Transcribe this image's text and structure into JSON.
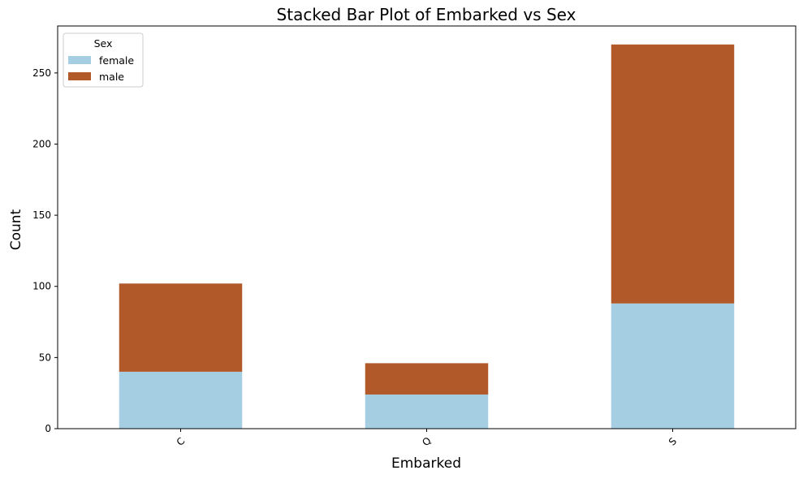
{
  "chart_data": {
    "type": "bar",
    "stacked": true,
    "title": "Stacked Bar Plot of Embarked vs Sex",
    "xlabel": "Embarked",
    "ylabel": "Count",
    "categories": [
      "C",
      "Q",
      "S"
    ],
    "series": [
      {
        "name": "female",
        "values": [
          40,
          24,
          88
        ],
        "color": "#a6cee3"
      },
      {
        "name": "male",
        "values": [
          62,
          22,
          182
        ],
        "color": "#b15928"
      }
    ],
    "ylim": [
      0,
      283
    ],
    "yticks": [
      0,
      50,
      100,
      150,
      200,
      250
    ],
    "legend": {
      "title": "Sex",
      "position": "top-left"
    },
    "grid": false
  }
}
